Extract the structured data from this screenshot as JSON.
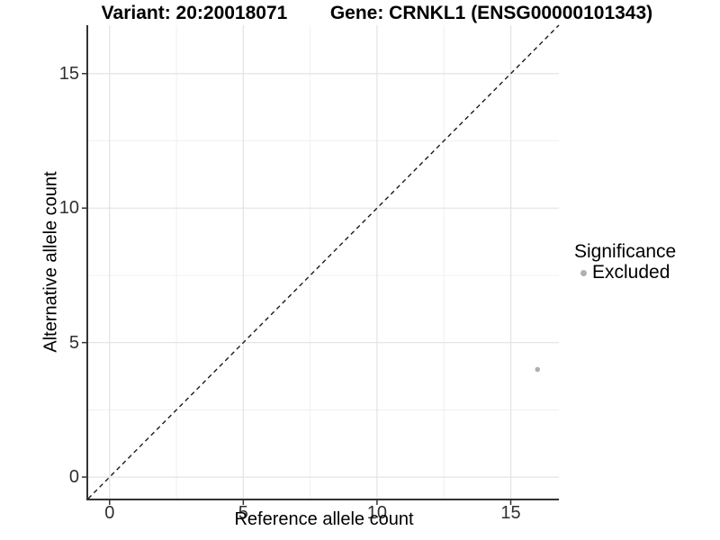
{
  "chart_data": {
    "type": "scatter",
    "title_variant": "Variant: 20:20018071",
    "title_gene": "Gene: CRNKL1 (ENSG00000101343)",
    "xlabel": "Reference allele count",
    "ylabel": "Alternative allele count",
    "xlim": [
      -0.8,
      16.8
    ],
    "ylim": [
      -0.8,
      16.8
    ],
    "x_ticks": [
      0,
      5,
      10,
      15
    ],
    "y_ticks": [
      0,
      5,
      10,
      15
    ],
    "x_minor_ticks": [
      2.5,
      7.5,
      12.5
    ],
    "y_minor_ticks": [
      2.5,
      7.5,
      12.5
    ],
    "grid": "major+minor",
    "legend": {
      "title": "Significance",
      "position": "right",
      "items": [
        {
          "label": "Excluded",
          "color": "#b0b0b0"
        }
      ]
    },
    "series": [
      {
        "name": "Excluded",
        "color": "#b0b0b0",
        "points": [
          {
            "x": 16,
            "y": 4
          }
        ]
      }
    ],
    "identity_line": {
      "type": "y=x",
      "style": "dashed",
      "color": "#1a1a1a"
    }
  },
  "colors": {
    "background": "#ffffff",
    "grid_major": "#e4e4e4",
    "grid_minor": "#f0f0f0",
    "axis_line": "#333333",
    "tick_mark": "#333333",
    "tick_label": "#303030",
    "title": "#000000",
    "point": "#b0b0b0"
  }
}
